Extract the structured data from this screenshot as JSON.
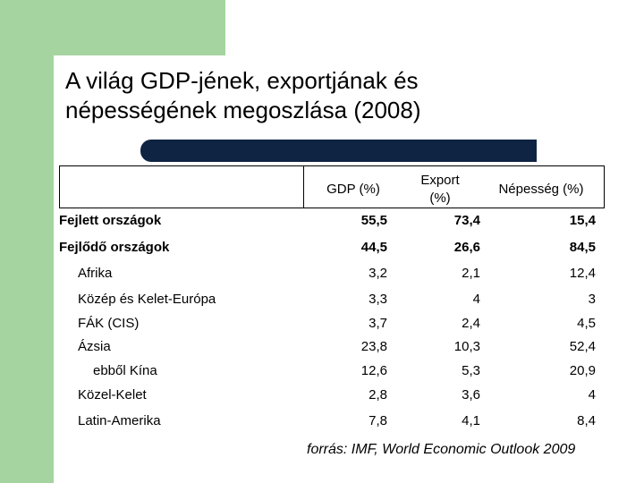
{
  "title": {
    "line1": "A világ GDP-jének, exportjának és",
    "line2": "népességének megoszlása (2008)"
  },
  "table": {
    "headers": {
      "gdp": "GDP (%)",
      "export_line1": "Export",
      "export_line2": "(%)",
      "population": "Népesség (%)"
    },
    "rows": [
      {
        "label": "Fejlett országok",
        "gdp": "55,5",
        "export": "73,4",
        "population": "15,4"
      },
      {
        "label": "Fejlődő országok",
        "gdp": "44,5",
        "export": "26,6",
        "population": "84,5"
      },
      {
        "label": "Afrika",
        "gdp": "3,2",
        "export": "2,1",
        "population": "12,4"
      },
      {
        "label": "Közép és Kelet-Európa",
        "gdp": "3,3",
        "export": "4",
        "population": "3"
      },
      {
        "label": "FÁK (CIS)",
        "gdp": "3,7",
        "export": "2,4",
        "population": "4,5"
      },
      {
        "label": "Ázsia",
        "gdp": "23,8",
        "export": "10,3",
        "population": "52,4"
      },
      {
        "label": "ebből Kína",
        "gdp": "12,6",
        "export": "5,3",
        "population": "20,9"
      },
      {
        "label": "Közel-Kelet",
        "gdp": "2,8",
        "export": "3,6",
        "population": "4"
      },
      {
        "label": "Latin-Amerika",
        "gdp": "7,8",
        "export": "4,1",
        "population": "8,4"
      }
    ]
  },
  "source": "forrás: IMF, World Economic Outlook 2009",
  "colors": {
    "green": "#a6d4a0",
    "navy_bar": "#0f2342"
  }
}
